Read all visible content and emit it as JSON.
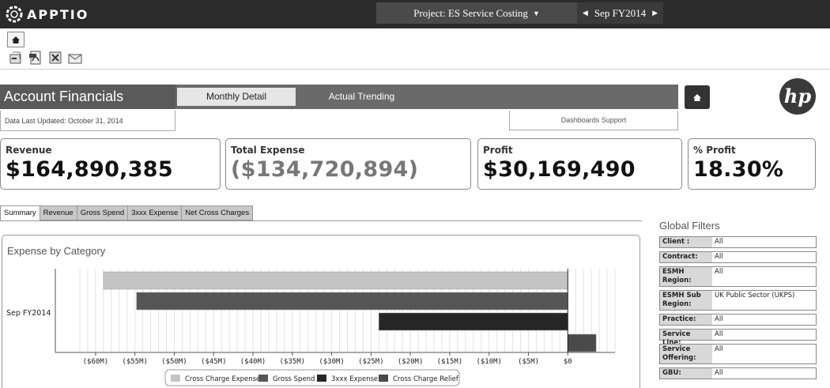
{
  "topbar": {
    "logo_text": "APPTIO",
    "project_label": "Project: ES Service Costing",
    "period_label": "Sep FY2014"
  },
  "header": {
    "title": "Account Financials",
    "tabs": [
      "Monthly Detail",
      "Actual Trending"
    ],
    "last_updated": "Data Last Updated: October 31, 2014",
    "support_link": "Dashboards Support"
  },
  "kpis": [
    {
      "label": "Revenue",
      "value": "$164,890,385"
    },
    {
      "label": "Total Expense",
      "value": "($134,720,894)"
    },
    {
      "label": "Profit",
      "value": "$30,169,490"
    },
    {
      "label": "% Profit",
      "value": "18.30%"
    }
  ],
  "subtabs": [
    "Summary",
    "Revenue",
    "Gross Spend",
    "3xxx Expense",
    "Net Cross Charges"
  ],
  "chart_title": "Expense by Category",
  "chart_data": {
    "type": "bar",
    "orientation": "horizontal",
    "title": "Expense by Category",
    "categories": [
      "Sep FY2014"
    ],
    "series": [
      {
        "name": "Cross Charge Expense",
        "values": [
          -59.0
        ],
        "color": "#c4c4c4"
      },
      {
        "name": "Gross Spend",
        "values": [
          -54.8
        ],
        "color": "#555555"
      },
      {
        "name": "3xxx Expense",
        "values": [
          -24.0
        ],
        "color": "#262626"
      },
      {
        "name": "Cross Charge Relief",
        "values": [
          3.6
        ],
        "color": "#4a4a4a"
      }
    ],
    "xlim": [
      -62,
      6
    ],
    "xticks": [
      -60,
      -55,
      -50,
      -45,
      -40,
      -35,
      -30,
      -25,
      -20,
      -15,
      -10,
      -5,
      0
    ],
    "xtick_labels": [
      "($60M)",
      "($55M)",
      "($50M)",
      "($45M)",
      "($40M)",
      "($35M)",
      "($30M)",
      "($25M)",
      "($20M)",
      "($15M)",
      "($10M)",
      "($5M)",
      "$0"
    ],
    "legend": "bottom",
    "grid": true
  },
  "filters": {
    "title": "Global Filters",
    "rows": [
      {
        "label": "Client :",
        "value": "All"
      },
      {
        "label": "Contract:",
        "value": "All"
      },
      {
        "label": "ESMH Region:",
        "value": "All"
      },
      {
        "label": "ESMH Sub Region:",
        "value": "UK Public Sector (UKPS)"
      },
      {
        "label": "Practice:",
        "value": "All"
      },
      {
        "label": "Service Line:",
        "value": "All"
      },
      {
        "label": "Service Offering:",
        "value": "All"
      },
      {
        "label": "GBU:",
        "value": "All"
      }
    ]
  },
  "icons": [
    "apptio-logo-icon",
    "chevron-down-icon",
    "chevron-left-icon",
    "chevron-right-icon",
    "home-icon",
    "export-icon",
    "pdf-icon",
    "excel-icon",
    "email-icon",
    "hp-logo-icon"
  ]
}
